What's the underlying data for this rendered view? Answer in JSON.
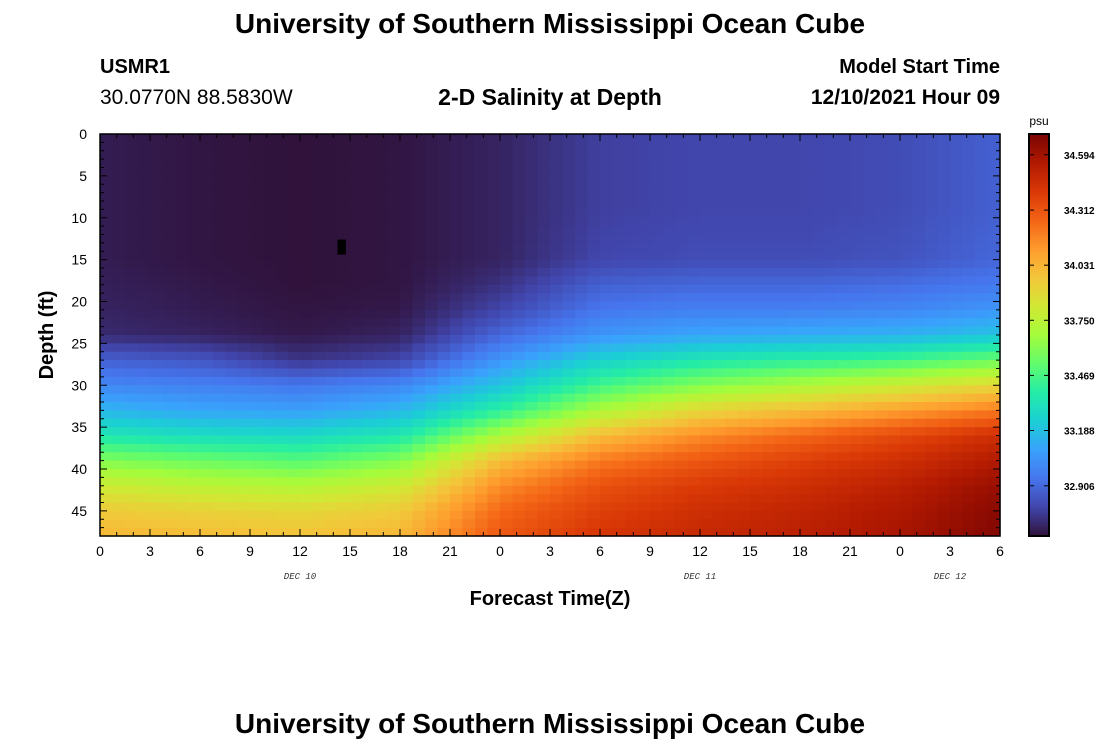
{
  "header": {
    "title": "University of Southern Mississippi Ocean Cube",
    "station_id": "USMR1",
    "station_coords": "30.0770N  88.5830W",
    "plot_title": "2-D Salinity at Depth",
    "model_label": "Model Start Time",
    "model_time": "12/10/2021 Hour 09"
  },
  "footer": {
    "title": "University of Southern Mississippi Ocean Cube"
  },
  "chart_data": {
    "type": "heatmap",
    "title": "2-D Salinity at Depth",
    "xlabel": "Forecast Time(Z)",
    "ylabel": "Depth (ft)",
    "x_ticks": [
      "0",
      "3",
      "6",
      "9",
      "12",
      "15",
      "18",
      "21",
      "0",
      "3",
      "6",
      "9",
      "12",
      "15",
      "18",
      "21",
      "0",
      "3",
      "6"
    ],
    "x_hours": [
      0,
      3,
      6,
      9,
      12,
      15,
      18,
      21,
      24,
      27,
      30,
      33,
      36,
      39,
      42,
      45,
      48,
      51,
      54
    ],
    "day_labels": [
      {
        "label": "DEC 10",
        "hour": 12
      },
      {
        "label": "DEC 11",
        "hour": 36
      },
      {
        "label": "DEC 12",
        "hour": 51
      }
    ],
    "xlim": [
      0,
      54
    ],
    "y_ticks": [
      0,
      5,
      10,
      15,
      20,
      25,
      30,
      35,
      40,
      45
    ],
    "ylim": [
      0,
      48
    ],
    "y_inverted": true,
    "colorbar": {
      "unit": "psu",
      "range": [
        32.65,
        34.7
      ],
      "tick_values": [
        34.594,
        34.312,
        34.031,
        33.75,
        33.469,
        33.188,
        32.906
      ],
      "tick_labels": [
        "34.594",
        "34.312",
        "34.031",
        "33.750",
        "33.469",
        "33.188",
        "32.906"
      ]
    },
    "grid": false,
    "colormap": [
      "#30123b",
      "#4145ab",
      "#4675ed",
      "#39a2fc",
      "#1bcfd4",
      "#24eca6",
      "#61fc6c",
      "#a4fc3b",
      "#d1e834",
      "#f3c63a",
      "#fe9b2d",
      "#f36315",
      "#d93806",
      "#b11901",
      "#7a0402"
    ],
    "depth_ft": [
      0,
      3,
      6,
      9,
      12,
      15,
      18,
      21,
      24,
      27,
      30,
      33,
      36,
      39,
      42,
      45,
      48
    ],
    "time_hours": [
      0,
      6,
      12,
      18,
      24,
      30,
      36,
      42,
      48,
      54
    ],
    "salinity_psu": [
      [
        32.68,
        32.66,
        32.65,
        32.66,
        32.7,
        32.78,
        32.8,
        32.8,
        32.82,
        32.88
      ],
      [
        32.68,
        32.66,
        32.65,
        32.66,
        32.7,
        32.78,
        32.8,
        32.8,
        32.82,
        32.88
      ],
      [
        32.68,
        32.66,
        32.65,
        32.66,
        32.7,
        32.78,
        32.8,
        32.8,
        32.82,
        32.88
      ],
      [
        32.68,
        32.66,
        32.65,
        32.66,
        32.7,
        32.78,
        32.8,
        32.8,
        32.82,
        32.88
      ],
      [
        32.68,
        32.66,
        32.65,
        32.66,
        32.7,
        32.79,
        32.81,
        32.81,
        32.83,
        32.89
      ],
      [
        32.68,
        32.66,
        32.65,
        32.66,
        32.7,
        32.8,
        32.82,
        32.82,
        32.84,
        32.9
      ],
      [
        32.69,
        32.67,
        32.65,
        32.66,
        32.74,
        32.88,
        32.9,
        32.9,
        32.92,
        32.96
      ],
      [
        32.7,
        32.68,
        32.66,
        32.67,
        32.8,
        32.95,
        32.98,
        32.98,
        33.0,
        33.05
      ],
      [
        32.72,
        32.7,
        32.67,
        32.7,
        32.9,
        33.05,
        33.1,
        33.12,
        33.14,
        33.2
      ],
      [
        32.88,
        32.85,
        32.75,
        32.8,
        33.05,
        33.25,
        33.35,
        33.4,
        33.45,
        33.55
      ],
      [
        33.0,
        32.98,
        32.95,
        33.0,
        33.2,
        33.45,
        33.6,
        33.7,
        33.8,
        33.9
      ],
      [
        33.15,
        33.1,
        33.08,
        33.15,
        33.4,
        33.7,
        33.9,
        34.0,
        34.1,
        34.2
      ],
      [
        33.35,
        33.3,
        33.28,
        33.35,
        33.7,
        34.0,
        34.15,
        34.25,
        34.35,
        34.45
      ],
      [
        33.6,
        33.55,
        33.5,
        33.6,
        34.0,
        34.2,
        34.3,
        34.38,
        34.45,
        34.55
      ],
      [
        33.8,
        33.75,
        33.72,
        33.8,
        34.15,
        34.32,
        34.4,
        34.45,
        34.52,
        34.62
      ],
      [
        33.95,
        33.92,
        33.9,
        33.95,
        34.25,
        34.38,
        34.45,
        34.5,
        34.56,
        34.66
      ],
      [
        34.02,
        34.0,
        33.98,
        34.02,
        34.3,
        34.42,
        34.48,
        34.52,
        34.58,
        34.68
      ]
    ]
  }
}
